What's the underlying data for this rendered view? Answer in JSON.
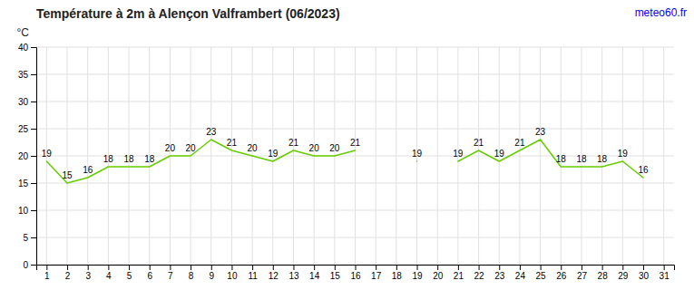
{
  "chart_data": {
    "type": "line",
    "title": "Température à 2m à Alençon Valframbert (06/2023)",
    "ylabel": "°C",
    "annotations": [
      {
        "text": "meteo60.fr",
        "color": "#0000ee"
      }
    ],
    "x": [
      1,
      2,
      3,
      4,
      5,
      6,
      7,
      8,
      9,
      10,
      11,
      12,
      13,
      14,
      15,
      16,
      17,
      18,
      19,
      20,
      21,
      22,
      23,
      24,
      25,
      26,
      27,
      28,
      29,
      30,
      31
    ],
    "values": [
      19,
      15,
      16,
      18,
      18,
      18,
      20,
      20,
      23,
      21,
      20,
      19,
      21,
      20,
      20,
      21,
      null,
      null,
      19,
      null,
      19,
      21,
      19,
      21,
      23,
      18,
      18,
      18,
      19,
      16,
      null
    ],
    "color": "#66cc00",
    "xlim": [
      0.5,
      31.5
    ],
    "xticks": [
      1,
      2,
      3,
      4,
      5,
      6,
      7,
      8,
      9,
      10,
      11,
      12,
      13,
      14,
      15,
      16,
      17,
      18,
      19,
      20,
      21,
      22,
      23,
      24,
      25,
      26,
      27,
      28,
      29,
      30,
      31
    ],
    "ylim": [
      0,
      40
    ],
    "yticks": [
      0,
      5,
      10,
      15,
      20,
      25,
      30,
      35,
      40
    ],
    "grid": true,
    "data_labels": true
  }
}
